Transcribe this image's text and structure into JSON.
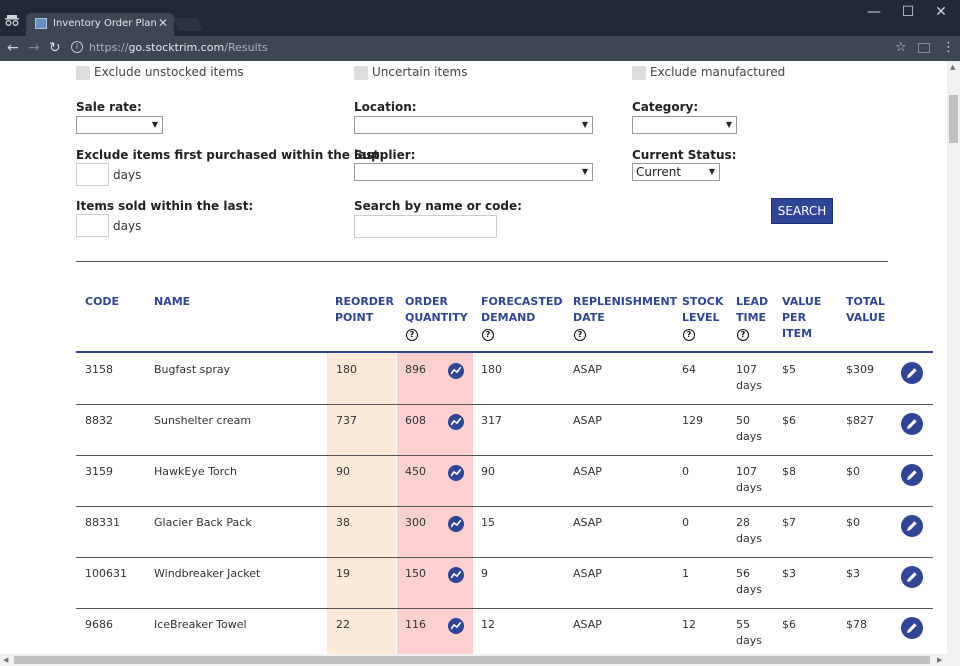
{
  "browser": {
    "tab_title": "Inventory Order Plan - St",
    "url_scheme": "https://",
    "url_host": "go.stocktrim.com",
    "url_path": "/Results",
    "minimize": "—",
    "maximize": "☐",
    "close": "✕",
    "back": "←",
    "forward": "→",
    "reload": "↻",
    "star": "☆",
    "menu": "⋮"
  },
  "filters": {
    "exclude_unstocked": "Exclude unstocked items",
    "uncertain": "Uncertain items",
    "exclude_manufactured": "Exclude manufactured",
    "sale_rate_label": "Sale rate:",
    "sale_rate_value": "",
    "location_label": "Location:",
    "location_value": "",
    "category_label": "Category:",
    "category_value": "",
    "exclude_first_purchased_label": "Exclude items first purchased within the last:",
    "exclude_first_purchased_suffix": "days",
    "supplier_label": "Supplier:",
    "supplier_value": "",
    "current_status_label": "Current Status:",
    "current_status_value": "Current",
    "items_sold_label": "Items sold within the last:",
    "items_sold_suffix": "days",
    "search_label": "Search by name or code:",
    "search_value": "",
    "search_button": "SEARCH"
  },
  "table": {
    "headers": {
      "code": "CODE",
      "name": "NAME",
      "reorder_point": [
        "REORDER",
        "POINT"
      ],
      "order_quantity": [
        "ORDER",
        "QUANTITY"
      ],
      "forecasted_demand": [
        "FORECASTED",
        "DEMAND"
      ],
      "replenishment_date": [
        "REPLENISHMENT",
        "DATE"
      ],
      "stock_level": [
        "STOCK",
        "LEVEL"
      ],
      "lead_time": [
        "LEAD",
        "TIME"
      ],
      "value_per_item": [
        "VALUE",
        "PER",
        "ITEM"
      ],
      "total_value": [
        "TOTAL",
        "VALUE"
      ]
    },
    "help_glyph": "?",
    "rows": [
      {
        "code": "3158",
        "name": "Bugfast spray",
        "reorder_point": "180",
        "order_quantity": "896",
        "forecasted_demand": "180",
        "replenishment_date": "ASAP",
        "stock_level": "64",
        "lead_time": "107",
        "lead_unit": "days",
        "value_per_item": "$5",
        "total_value": "$309"
      },
      {
        "code": "8832",
        "name": "Sunshelter cream",
        "reorder_point": "737",
        "order_quantity": "608",
        "forecasted_demand": "317",
        "replenishment_date": "ASAP",
        "stock_level": "129",
        "lead_time": "50",
        "lead_unit": "days",
        "value_per_item": "$6",
        "total_value": "$827"
      },
      {
        "code": "3159",
        "name": "HawkEye Torch",
        "reorder_point": "90",
        "order_quantity": "450",
        "forecasted_demand": "90",
        "replenishment_date": "ASAP",
        "stock_level": "0",
        "lead_time": "107",
        "lead_unit": "days",
        "value_per_item": "$8",
        "total_value": "$0"
      },
      {
        "code": "88331",
        "name": "Glacier Back Pack",
        "reorder_point": "38",
        "order_quantity": "300",
        "forecasted_demand": "15",
        "replenishment_date": "ASAP",
        "stock_level": "0",
        "lead_time": "28",
        "lead_unit": "days",
        "value_per_item": "$7",
        "total_value": "$0"
      },
      {
        "code": "100631",
        "name": "Windbreaker Jacket",
        "reorder_point": "19",
        "order_quantity": "150",
        "forecasted_demand": "9",
        "replenishment_date": "ASAP",
        "stock_level": "1",
        "lead_time": "56",
        "lead_unit": "days",
        "value_per_item": "$3",
        "total_value": "$3"
      },
      {
        "code": "9686",
        "name": "IceBreaker Towel",
        "reorder_point": "22",
        "order_quantity": "116",
        "forecasted_demand": "12",
        "replenishment_date": "ASAP",
        "stock_level": "12",
        "lead_time": "55",
        "lead_unit": "days",
        "value_per_item": "$6",
        "total_value": "$78"
      }
    ]
  },
  "colors": {
    "accent": "#2f4597",
    "reorder_highlight": "#fdebd9",
    "order_highlight": "#fdd0d0"
  },
  "icons": {
    "trend": "trend-chart-icon",
    "edit": "pencil-edit-icon",
    "help": "question-circle-icon"
  }
}
